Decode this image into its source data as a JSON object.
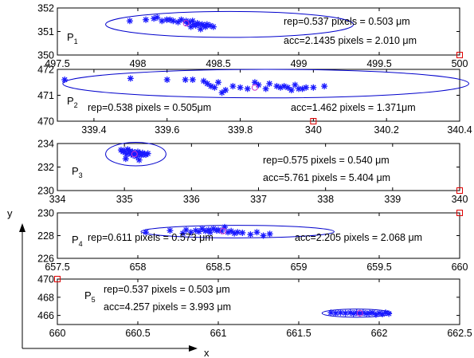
{
  "chart_data": [
    {
      "type": "scatter",
      "label": "P",
      "label_sub": "1",
      "xlim": [
        497.5,
        500
      ],
      "ylim": [
        350,
        352
      ],
      "xticks": [
        497.5,
        498,
        498.5,
        499,
        499.5,
        500
      ],
      "xtick_labels": [
        "497.5",
        "498",
        "498.5",
        "499",
        "499.5",
        "500"
      ],
      "yticks": [
        350,
        351,
        352
      ],
      "ytick_labels": [
        "350",
        "351",
        "352"
      ],
      "points": [
        [
          497.95,
          351.45
        ],
        [
          498.05,
          351.5
        ],
        [
          498.1,
          351.55
        ],
        [
          498.12,
          351.6
        ],
        [
          498.15,
          351.45
        ],
        [
          498.18,
          351.5
        ],
        [
          498.2,
          351.5
        ],
        [
          498.22,
          351.45
        ],
        [
          498.25,
          351.4
        ],
        [
          498.27,
          351.5
        ],
        [
          498.3,
          351.45
        ],
        [
          498.31,
          351.35
        ],
        [
          498.32,
          351.4
        ],
        [
          498.33,
          351.2
        ],
        [
          498.34,
          351.45
        ],
        [
          498.35,
          351.3
        ],
        [
          498.36,
          351.25
        ],
        [
          498.37,
          351.35
        ],
        [
          498.38,
          351.3
        ],
        [
          498.39,
          351.1
        ],
        [
          498.4,
          351.3
        ],
        [
          498.41,
          351.25
        ],
        [
          498.42,
          351.2
        ],
        [
          498.43,
          351.3
        ],
        [
          498.45,
          351.25
        ],
        [
          498.47,
          351.2
        ]
      ],
      "mean": [
        498.3,
        351.35
      ],
      "ellipse": {
        "cx": 498.57,
        "cy": 351.3,
        "rx": 0.77,
        "ry": 0.55
      },
      "reference_marker": [
        500,
        350
      ],
      "annotations": [
        "rep=0.537 pixels = 0.503 μm",
        "acc=2.1435 pixels = 2.010 μm"
      ]
    },
    {
      "type": "scatter",
      "label": "P",
      "label_sub": "2",
      "xlim": [
        339.3,
        340.4
      ],
      "ylim": [
        470,
        472
      ],
      "xticks": [
        339.4,
        339.6,
        339.8,
        340,
        340.2,
        340.4
      ],
      "xtick_labels": [
        "339.4",
        "339.6",
        "339.8",
        "340",
        "340.2",
        "340.4"
      ],
      "yticks": [
        470,
        471,
        472
      ],
      "ytick_labels": [
        "470",
        "471",
        "472"
      ],
      "points": [
        [
          339.32,
          471.6
        ],
        [
          339.5,
          471.65
        ],
        [
          339.6,
          471.6
        ],
        [
          339.65,
          471.6
        ],
        [
          339.67,
          471.6
        ],
        [
          339.7,
          471.55
        ],
        [
          339.71,
          471.45
        ],
        [
          339.72,
          471.35
        ],
        [
          339.73,
          471.3
        ],
        [
          339.74,
          471.5
        ],
        [
          339.75,
          471.1
        ],
        [
          339.76,
          471.2
        ],
        [
          339.78,
          471.35
        ],
        [
          339.8,
          471.3
        ],
        [
          339.82,
          471.25
        ],
        [
          339.84,
          471.5
        ],
        [
          339.85,
          471.4
        ],
        [
          339.87,
          471.25
        ],
        [
          339.88,
          471.45
        ],
        [
          339.9,
          471.35
        ],
        [
          339.91,
          471.3
        ],
        [
          339.92,
          471.35
        ],
        [
          339.93,
          471.3
        ],
        [
          339.94,
          471.2
        ],
        [
          339.95,
          471.4
        ],
        [
          339.96,
          471.25
        ],
        [
          339.97,
          471.25
        ],
        [
          339.98,
          471.3
        ],
        [
          340.0,
          471.3
        ],
        [
          340.03,
          471.35
        ]
      ],
      "mean": [
        339.84,
        471.3
      ],
      "ellipse": {
        "cx": 339.87,
        "cy": 471.45,
        "rx": 0.555,
        "ry": 0.55
      },
      "reference_marker": [
        340,
        470
      ],
      "annotations": [
        "rep=0.538 pixels = 0.505μm",
        "acc=1.462 pixels = 1.371μm"
      ]
    },
    {
      "type": "scatter",
      "label": "P",
      "label_sub": "3",
      "xlim": [
        334,
        340
      ],
      "ylim": [
        230,
        234
      ],
      "xticks": [
        334,
        335,
        336,
        337,
        338,
        339,
        340
      ],
      "xtick_labels": [
        "334",
        "335",
        "336",
        "337",
        "338",
        "339",
        "340"
      ],
      "yticks": [
        230,
        232,
        234
      ],
      "ytick_labels": [
        "230",
        "232",
        "234"
      ],
      "points": [
        [
          334.95,
          233.45
        ],
        [
          334.98,
          233.3
        ],
        [
          335.0,
          233.4
        ],
        [
          335.02,
          232.7
        ],
        [
          335.03,
          233.1
        ],
        [
          335.05,
          233.5
        ],
        [
          335.07,
          233.2
        ],
        [
          335.08,
          233.35
        ],
        [
          335.1,
          233.1
        ],
        [
          335.12,
          233.3
        ],
        [
          335.13,
          233.0
        ],
        [
          335.15,
          233.25
        ],
        [
          335.17,
          233.1
        ],
        [
          335.18,
          232.9
        ],
        [
          335.2,
          233.3
        ],
        [
          335.22,
          232.6
        ],
        [
          335.23,
          233.15
        ],
        [
          335.25,
          233.0
        ],
        [
          335.27,
          233.2
        ],
        [
          335.3,
          233.1
        ],
        [
          335.32,
          233.05
        ],
        [
          335.35,
          233.15
        ]
      ],
      "mean": [
        335.15,
        233.1
      ],
      "ellipse": {
        "cx": 335.17,
        "cy": 233.1,
        "rx": 0.45,
        "ry": 1.0
      },
      "reference_marker": [
        340,
        230
      ],
      "annotations": [
        "rep=0.575 pixels = 0.540 μm",
        "acc=5.761 pixels = 5.404 μm"
      ]
    },
    {
      "type": "scatter",
      "label": "P",
      "label_sub": "4",
      "xlim": [
        657.5,
        660
      ],
      "ylim": [
        226,
        230
      ],
      "xticks": [
        657.5,
        658,
        658.5,
        659,
        659.5,
        660
      ],
      "xtick_labels": [
        "657.5",
        "658",
        "658.5",
        "659",
        "659.5",
        "660"
      ],
      "yticks": [
        226,
        228,
        230
      ],
      "ytick_labels": [
        "226",
        "228",
        "230"
      ],
      "points": [
        [
          658.05,
          228.3
        ],
        [
          658.2,
          228.45
        ],
        [
          658.28,
          228.2
        ],
        [
          658.3,
          228.5
        ],
        [
          658.33,
          228.3
        ],
        [
          658.36,
          228.45
        ],
        [
          658.38,
          228.35
        ],
        [
          658.4,
          228.6
        ],
        [
          658.42,
          228.4
        ],
        [
          658.44,
          228.5
        ],
        [
          658.45,
          228.3
        ],
        [
          658.47,
          228.6
        ],
        [
          658.49,
          228.45
        ],
        [
          658.5,
          228.5
        ],
        [
          658.52,
          228.4
        ],
        [
          658.54,
          228.75
        ],
        [
          658.56,
          228.3
        ],
        [
          658.58,
          228.4
        ],
        [
          658.6,
          228.2
        ],
        [
          658.62,
          228.3
        ],
        [
          658.65,
          228.25
        ],
        [
          658.7,
          228.1
        ],
        [
          658.74,
          228.3
        ],
        [
          658.78,
          228.0
        ],
        [
          658.82,
          228.15
        ]
      ],
      "mean": [
        658.53,
        228.4
      ],
      "ellipse": {
        "cx": 658.62,
        "cy": 228.35,
        "rx": 0.6,
        "ry": 0.55
      },
      "reference_marker": [
        660,
        230
      ],
      "annotations": [
        "rep=0.611 pixels = 0.573 μm",
        "acc=2.205 pixels = 2.068 μm"
      ]
    },
    {
      "type": "scatter",
      "label": "P",
      "label_sub": "5",
      "xlim": [
        660,
        662.5
      ],
      "ylim": [
        465,
        470
      ],
      "xticks": [
        660,
        660.5,
        661,
        661.5,
        662,
        662.5
      ],
      "xtick_labels": [
        "660",
        "660.5",
        "661",
        "661.5",
        "662",
        "662.5"
      ],
      "yticks": [
        466,
        468,
        470
      ],
      "ytick_labels": [
        "466",
        "468",
        "470"
      ],
      "points": [
        [
          661.7,
          466.3
        ],
        [
          661.73,
          466.25
        ],
        [
          661.76,
          466.3
        ],
        [
          661.79,
          466.25
        ],
        [
          661.82,
          466.3
        ],
        [
          661.84,
          466.2
        ],
        [
          661.86,
          466.3
        ],
        [
          661.88,
          466.25
        ],
        [
          661.9,
          466.3
        ],
        [
          661.92,
          466.2
        ],
        [
          661.94,
          466.25
        ],
        [
          661.96,
          466.3
        ],
        [
          661.98,
          466.1
        ],
        [
          662.0,
          466.25
        ],
        [
          662.02,
          466.15
        ],
        [
          662.04,
          466.3
        ],
        [
          662.06,
          466.2
        ]
      ],
      "mean": [
        661.88,
        466.25
      ],
      "ellipse": {
        "cx": 661.86,
        "cy": 466.25,
        "rx": 0.215,
        "ry": 0.45
      },
      "reference_marker": [
        660,
        470
      ],
      "annotations": [
        "rep=0.537 pixels = 0.503 μm",
        "acc=4.257 pixels = 3.993 μm"
      ]
    }
  ],
  "axes_labels": {
    "x": "x",
    "y": "y"
  },
  "colors": {
    "points": "#1a1aff",
    "ellipse": "#0000cc",
    "mean": "#cc33cc",
    "reference": "#dd0000",
    "axis": "#000000"
  }
}
